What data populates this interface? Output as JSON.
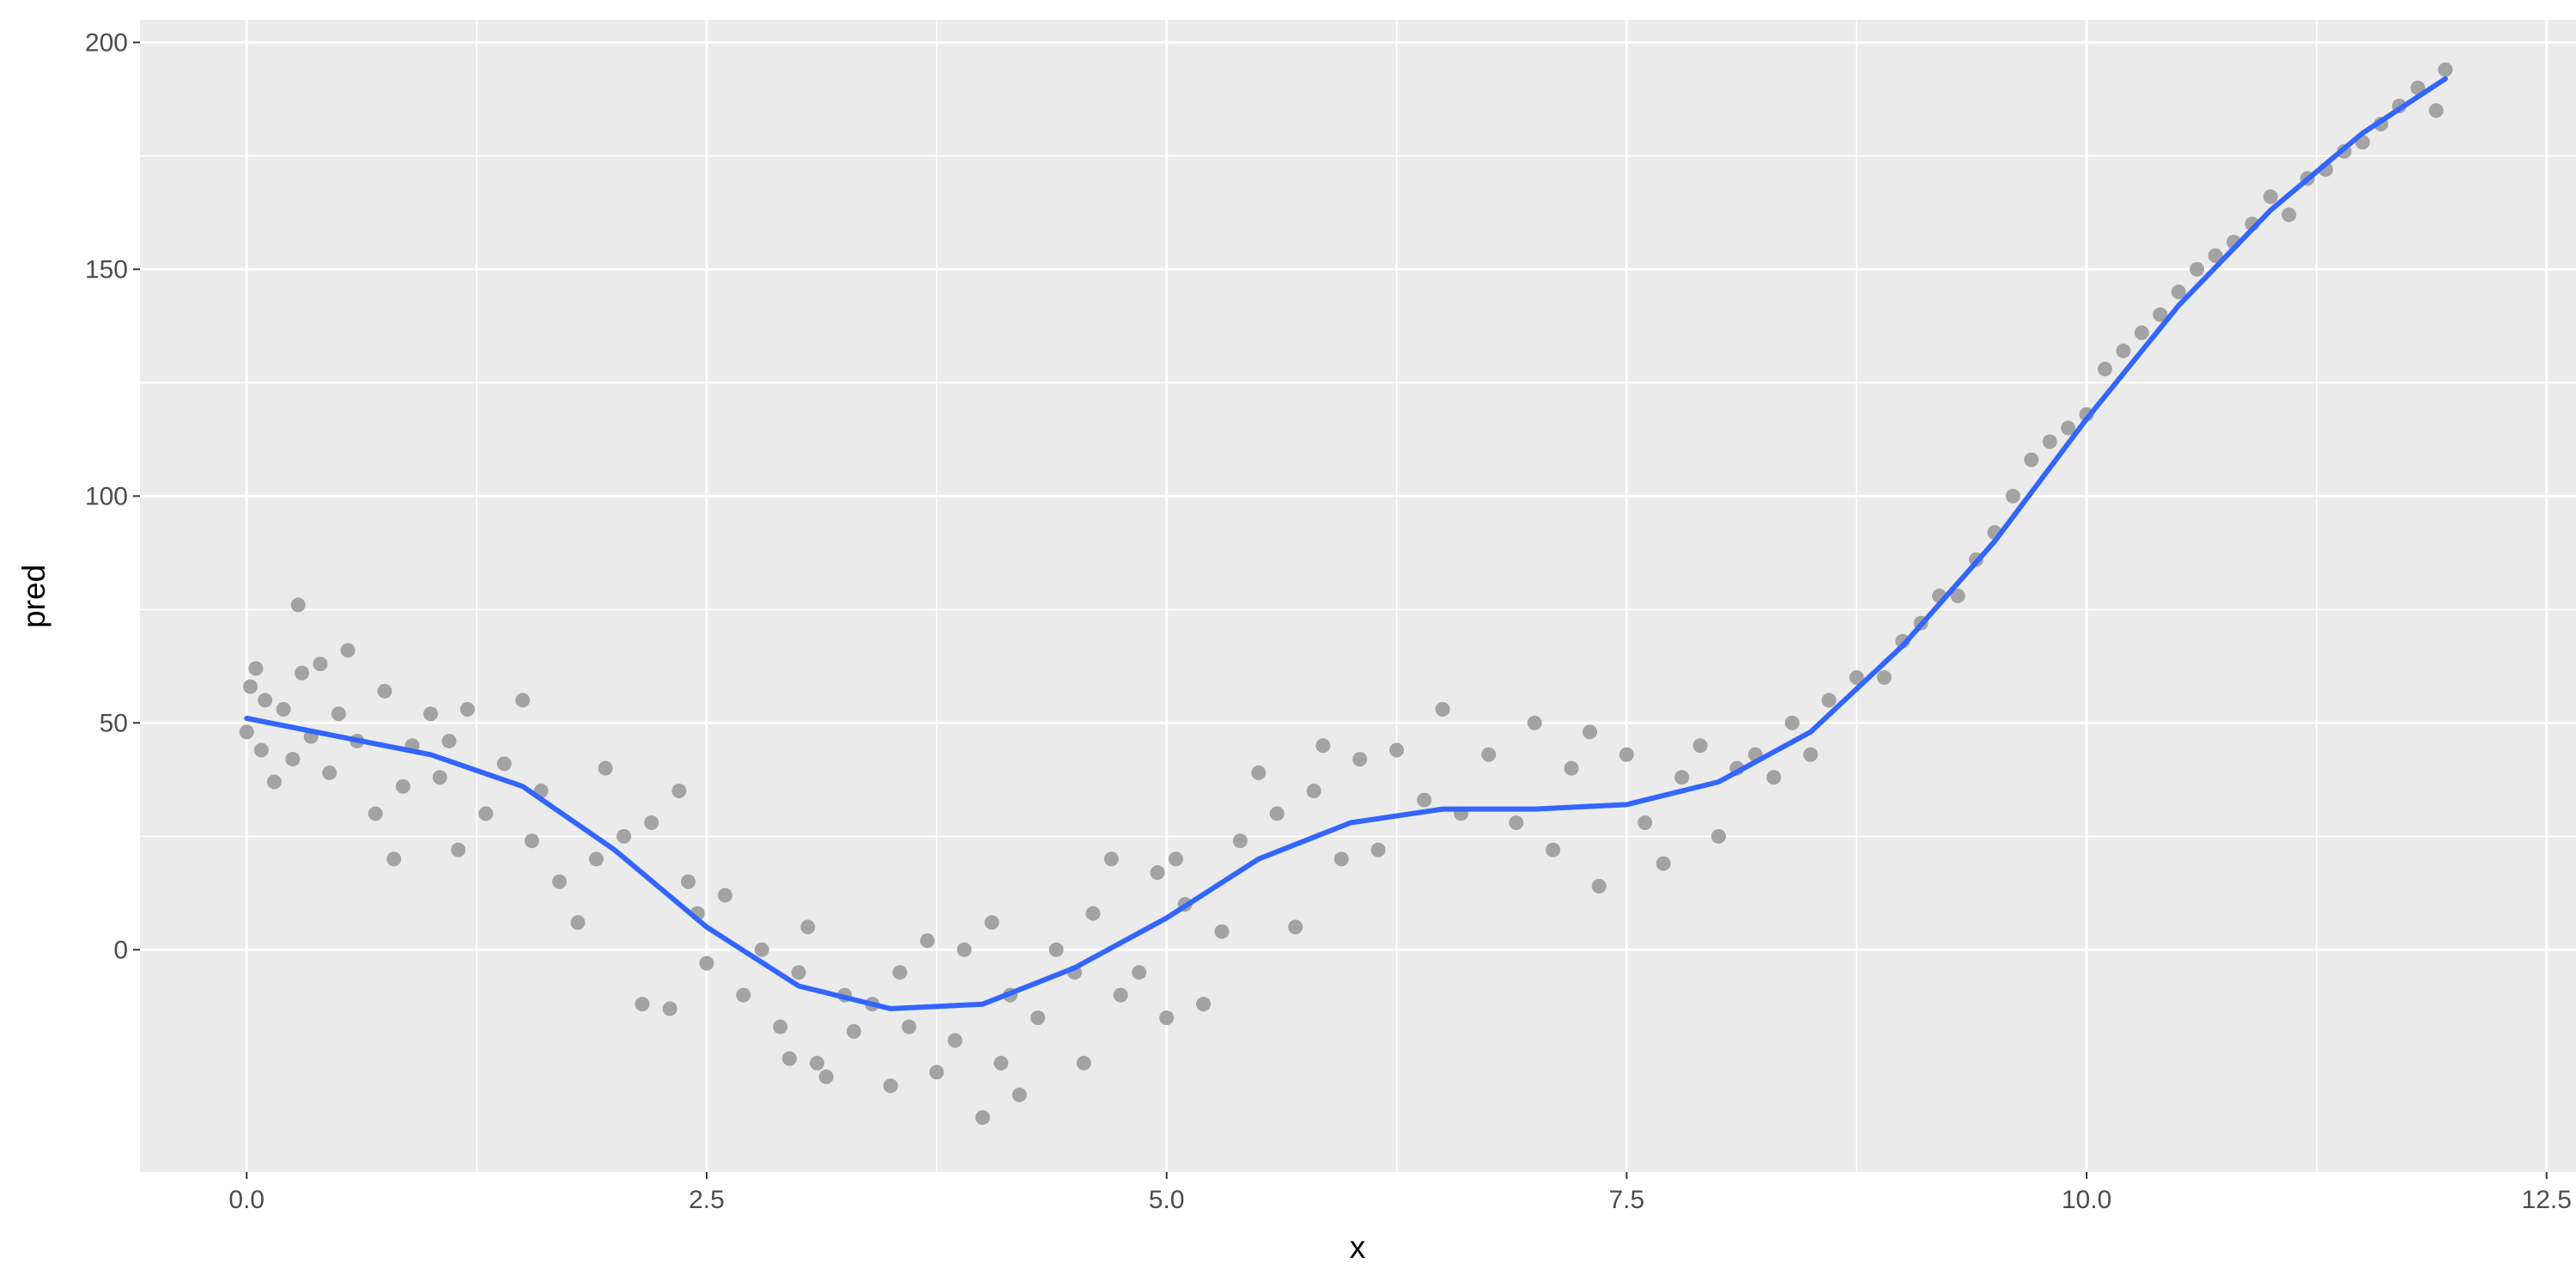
{
  "chart_data": {
    "type": "scatter",
    "x_label": "x",
    "y_label": "pred",
    "xlim": [
      -0.58,
      12.66
    ],
    "ylim": [
      -49,
      205
    ],
    "xticks": [
      {
        "value": 0,
        "label": "0.0"
      },
      2.5,
      {
        "value": 5,
        "label": "5.0"
      },
      7.5,
      {
        "value": 10,
        "label": "10.0"
      },
      12.5
    ],
    "yticks": [
      0,
      50,
      100,
      150,
      200
    ],
    "grid": true,
    "minor_grid": true,
    "background": "#ebebeb",
    "points": {
      "color": "#a3a3a3",
      "x": [
        0.0,
        0.02,
        0.05,
        0.08,
        0.1,
        0.15,
        0.2,
        0.25,
        0.28,
        0.3,
        0.35,
        0.4,
        0.45,
        0.5,
        0.55,
        0.6,
        0.7,
        0.75,
        0.8,
        0.85,
        0.9,
        1.0,
        1.05,
        1.1,
        1.15,
        1.2,
        1.3,
        1.4,
        1.5,
        1.55,
        1.6,
        1.7,
        1.8,
        1.9,
        1.95,
        2.05,
        2.15,
        2.2,
        2.3,
        2.35,
        2.4,
        2.45,
        2.5,
        2.6,
        2.7,
        2.8,
        2.9,
        2.95,
        3.0,
        3.05,
        3.1,
        3.15,
        3.25,
        3.3,
        3.4,
        3.5,
        3.55,
        3.6,
        3.7,
        3.75,
        3.85,
        3.9,
        4.0,
        4.05,
        4.1,
        4.15,
        4.2,
        4.3,
        4.4,
        4.5,
        4.55,
        4.6,
        4.7,
        4.75,
        4.85,
        4.95,
        5.0,
        5.05,
        5.1,
        5.2,
        5.3,
        5.4,
        5.5,
        5.6,
        5.7,
        5.8,
        5.85,
        5.95,
        6.05,
        6.15,
        6.25,
        6.4,
        6.5,
        6.6,
        6.75,
        6.9,
        7.0,
        7.1,
        7.2,
        7.3,
        7.35,
        7.5,
        7.6,
        7.7,
        7.8,
        7.9,
        8.0,
        8.1,
        8.2,
        8.3,
        8.4,
        8.5,
        8.6,
        8.75,
        8.9,
        9.0,
        9.1,
        9.2,
        9.3,
        9.4,
        9.5,
        9.6,
        9.7,
        9.8,
        9.9,
        10.0,
        10.1,
        10.2,
        10.3,
        10.4,
        10.5,
        10.6,
        10.7,
        10.8,
        10.9,
        11.0,
        11.1,
        11.2,
        11.3,
        11.4,
        11.5,
        11.6,
        11.7,
        11.8,
        11.9,
        11.95
      ],
      "y": [
        48,
        58,
        62,
        44,
        55,
        37,
        53,
        42,
        76,
        61,
        47,
        63,
        39,
        52,
        66,
        46,
        30,
        57,
        20,
        36,
        45,
        52,
        38,
        46,
        22,
        53,
        30,
        41,
        55,
        24,
        35,
        15,
        6,
        20,
        40,
        25,
        -12,
        28,
        -13,
        35,
        15,
        8,
        -3,
        12,
        -10,
        0,
        -17,
        -24,
        -5,
        5,
        -25,
        -28,
        -10,
        -18,
        -12,
        -30,
        -5,
        -17,
        2,
        -27,
        -20,
        0,
        -37,
        6,
        -25,
        -10,
        -32,
        -15,
        0,
        -5,
        -25,
        8,
        20,
        -10,
        -5,
        17,
        -15,
        20,
        10,
        -12,
        4,
        24,
        39,
        30,
        5,
        35,
        45,
        20,
        42,
        22,
        44,
        33,
        53,
        30,
        43,
        28,
        50,
        22,
        40,
        48,
        14,
        43,
        28,
        19,
        38,
        45,
        25,
        40,
        43,
        38,
        50,
        43,
        55,
        60,
        60,
        68,
        72,
        78,
        78,
        86,
        92,
        100,
        108,
        112,
        115,
        118,
        128,
        132,
        136,
        140,
        145,
        150,
        153,
        156,
        160,
        166,
        162,
        170,
        172,
        176,
        178,
        182,
        186,
        190,
        185,
        194
      ]
    },
    "smooth": {
      "color": "#3366ff",
      "x": [
        0,
        0.5,
        1,
        1.5,
        2,
        2.5,
        3,
        3.5,
        4,
        4.5,
        5,
        5.5,
        6,
        6.5,
        7,
        7.5,
        8,
        8.5,
        9,
        9.5,
        10,
        10.5,
        11,
        11.5,
        11.95
      ],
      "y": [
        51,
        47,
        43,
        36,
        22,
        5,
        -8,
        -13,
        -12,
        -4,
        7,
        20,
        28,
        31,
        31,
        32,
        37,
        48,
        67,
        90,
        117,
        142,
        163,
        180,
        192
      ]
    }
  }
}
